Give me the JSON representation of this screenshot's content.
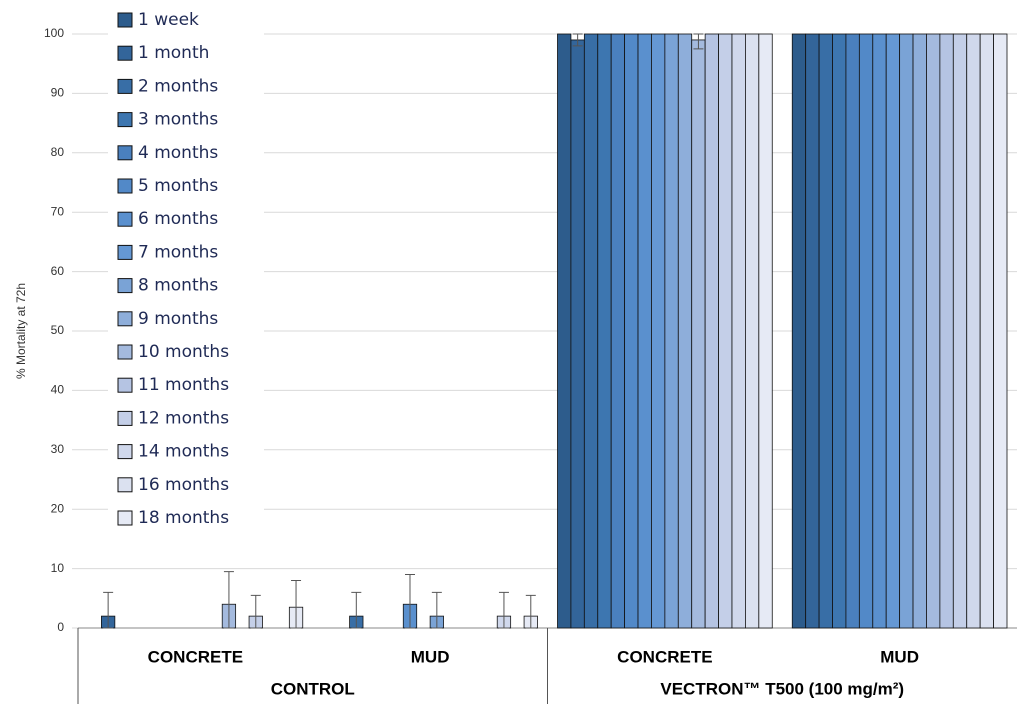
{
  "chart_data": {
    "type": "bar",
    "y_label": "% Mortality at 72h",
    "categories": [
      "CONCRETE",
      "MUD",
      "CONCRETE",
      "MUD"
    ],
    "groups": [
      "CONTROL",
      "VECTRON™ T500 (100 mg/m²)"
    ],
    "ylim": [
      0,
      100
    ],
    "yticks": [
      0,
      10,
      20,
      30,
      40,
      50,
      60,
      70,
      80,
      90,
      100
    ],
    "grid": true,
    "legend": "top-left",
    "series": [
      {
        "name": "1 week",
        "color": "#2d5c8c",
        "values": [
          0,
          0,
          100,
          100
        ],
        "errors": [
          null,
          null,
          null,
          null
        ]
      },
      {
        "name": "1 month",
        "color": "#33659a",
        "values": [
          2,
          0,
          99,
          100
        ],
        "errors": [
          4,
          null,
          1,
          null
        ]
      },
      {
        "name": "2 months",
        "color": "#386ea6",
        "values": [
          0,
          2,
          100,
          100
        ],
        "errors": [
          null,
          4,
          null,
          null
        ]
      },
      {
        "name": "3 months",
        "color": "#3d76b0",
        "values": [
          0,
          0,
          100,
          100
        ],
        "errors": [
          null,
          null,
          null,
          null
        ]
      },
      {
        "name": "4 months",
        "color": "#4a80be",
        "values": [
          0,
          0,
          100,
          100
        ],
        "errors": [
          null,
          null,
          null,
          null
        ]
      },
      {
        "name": "5 months",
        "color": "#5289c8",
        "values": [
          0,
          0,
          100,
          100
        ],
        "errors": [
          null,
          null,
          null,
          null
        ]
      },
      {
        "name": "6 months",
        "color": "#5a90ce",
        "values": [
          0,
          4,
          100,
          100
        ],
        "errors": [
          null,
          5,
          null,
          null
        ]
      },
      {
        "name": "7 months",
        "color": "#6598d4",
        "values": [
          0,
          0,
          100,
          100
        ],
        "errors": [
          null,
          null,
          null,
          null
        ]
      },
      {
        "name": "8 months",
        "color": "#7aa3d6",
        "values": [
          0,
          2,
          100,
          100
        ],
        "errors": [
          null,
          4,
          null,
          null
        ]
      },
      {
        "name": "9 months",
        "color": "#8eaeda",
        "values": [
          0,
          0,
          100,
          100
        ],
        "errors": [
          null,
          null,
          null,
          null
        ]
      },
      {
        "name": "10 months",
        "color": "#a4bade",
        "values": [
          4,
          0,
          99,
          100
        ],
        "errors": [
          5.5,
          null,
          1.5,
          null
        ]
      },
      {
        "name": "11 months",
        "color": "#b5c4e3",
        "values": [
          0,
          0,
          100,
          100
        ],
        "errors": [
          null,
          null,
          null,
          null
        ]
      },
      {
        "name": "12 months",
        "color": "#c4cfe8",
        "values": [
          2,
          0,
          100,
          100
        ],
        "errors": [
          3.5,
          null,
          null,
          null
        ]
      },
      {
        "name": "14 months",
        "color": "#d0d8ec",
        "values": [
          0,
          2,
          100,
          100
        ],
        "errors": [
          null,
          4,
          null,
          null
        ]
      },
      {
        "name": "16 months",
        "color": "#dbe1f0",
        "values": [
          0,
          0,
          100,
          100
        ],
        "errors": [
          null,
          null,
          null,
          null
        ]
      },
      {
        "name": "18 months",
        "color": "#e6eaf5",
        "values": [
          3.5,
          2,
          100,
          100
        ],
        "errors": [
          4.5,
          3.5,
          null,
          null
        ]
      }
    ]
  }
}
